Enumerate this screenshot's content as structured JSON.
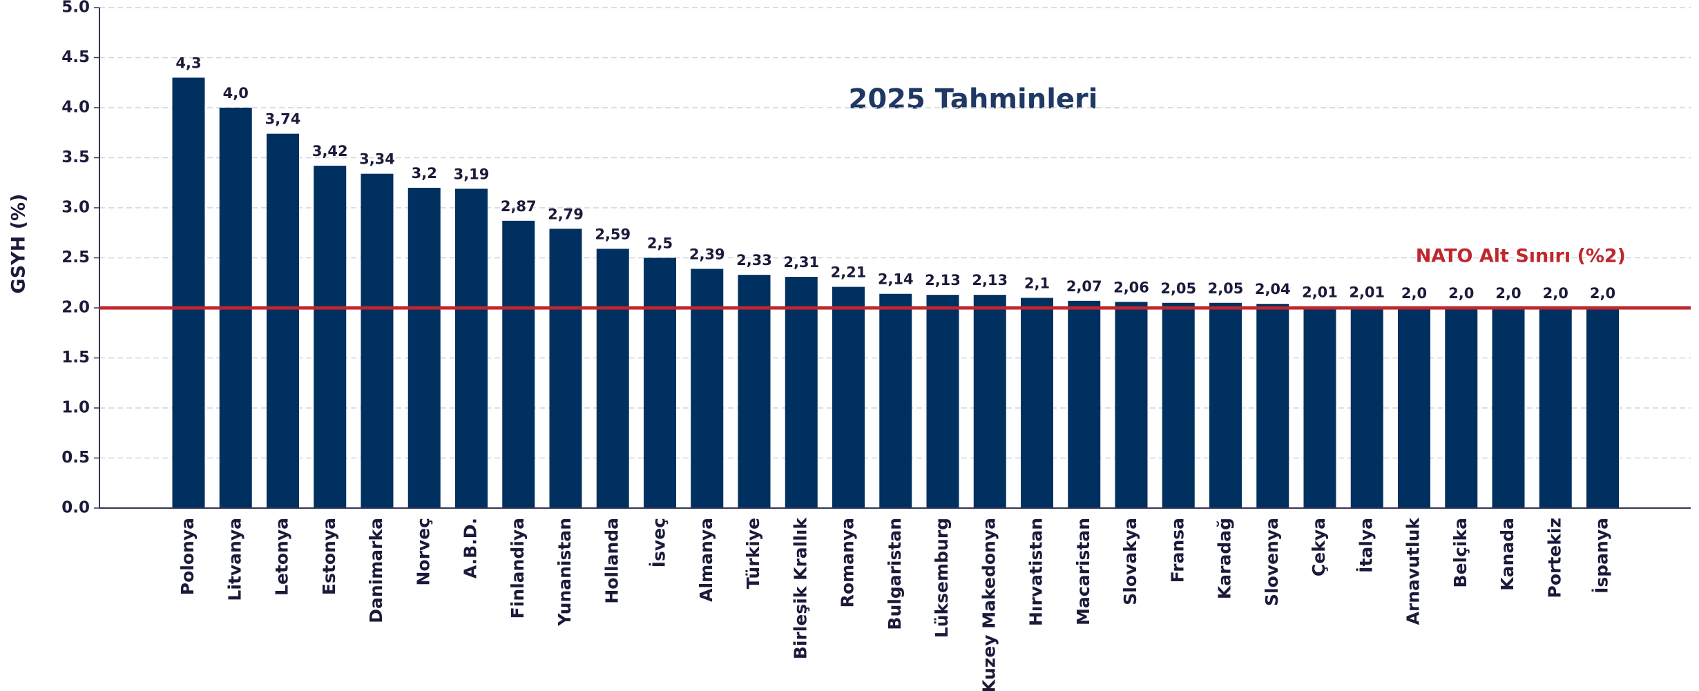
{
  "chart_data": {
    "type": "bar",
    "title": "2025 Tahminleri",
    "y_label": "GSYH (%)",
    "categories": [
      "Polonya",
      "Litvanya",
      "Letonya",
      "Estonya",
      "Danimarka",
      "Norveç",
      "A.B.D.",
      "Finlandiya",
      "Yunanistan",
      "Hollanda",
      "İsveç",
      "Almanya",
      "Türkiye",
      "Birleşik Krallık",
      "Romanya",
      "Bulgaristan",
      "Lüksemburg",
      "Kuzey Makedonya",
      "Hırvatistan",
      "Macaristan",
      "Slovakya",
      "Fransa",
      "Karadağ",
      "Slovenya",
      "Çekya",
      "İtalya",
      "Arnavutluk",
      "Belçika",
      "Kanada",
      "Portekiz",
      "İspanya"
    ],
    "values": [
      4.3,
      4.0,
      3.74,
      3.42,
      3.34,
      3.2,
      3.19,
      2.87,
      2.79,
      2.59,
      2.5,
      2.39,
      2.33,
      2.31,
      2.21,
      2.14,
      2.13,
      2.13,
      2.1,
      2.07,
      2.06,
      2.05,
      2.05,
      2.04,
      2.01,
      2.01,
      2.0,
      2.0,
      2.0,
      2.0,
      2.0
    ],
    "value_labels": [
      "4,3",
      "4,0",
      "3,74",
      "3,42",
      "3,34",
      "3,2",
      "3,19",
      "2,87",
      "2,79",
      "2,59",
      "2,5",
      "2,39",
      "2,33",
      "2,31",
      "2,21",
      "2,14",
      "2,13",
      "2,13",
      "2,1",
      "2,07",
      "2,06",
      "2,05",
      "2,05",
      "2,04",
      "2,01",
      "2,01",
      "2,0",
      "2,0",
      "2,0",
      "2,0",
      "2,0"
    ],
    "color": "#00305f",
    "ylim": [
      0,
      5
    ],
    "yticks": [
      {
        "value": 0,
        "label": "0.0"
      },
      {
        "value": 0.5,
        "label": "0.5"
      },
      {
        "value": 1,
        "label": "1.0"
      },
      {
        "value": 1.5,
        "label": "1.5"
      },
      {
        "value": 2,
        "label": "2.0"
      },
      {
        "value": 2.5,
        "label": "2.5"
      },
      {
        "value": 3,
        "label": "3.0"
      },
      {
        "value": 3.5,
        "label": "3.5"
      },
      {
        "value": 4,
        "label": "4.0"
      },
      {
        "value": 4.5,
        "label": "4.5"
      },
      {
        "value": 5,
        "label": "5.0"
      }
    ],
    "grid": true,
    "reference_line": {
      "value": 2,
      "label": "NATO Alt Sınırı (%2)",
      "color": "#c0272d"
    }
  }
}
